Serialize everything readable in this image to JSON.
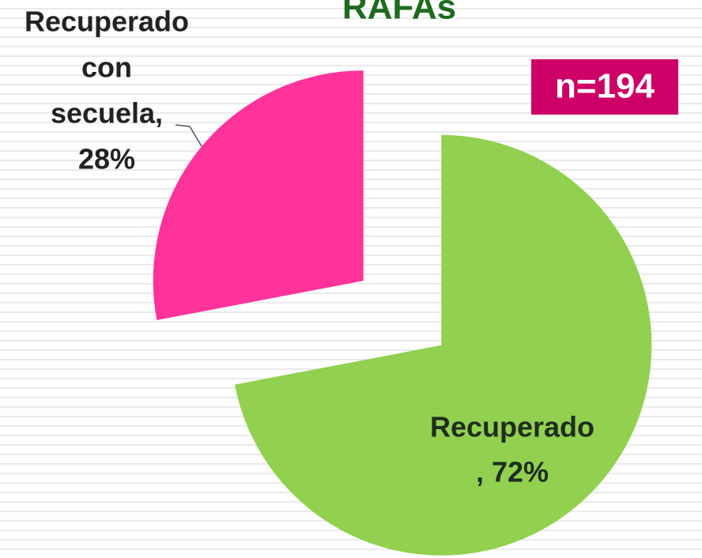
{
  "chart_data": {
    "type": "pie",
    "title": "RAFAs",
    "annotation": "n=194",
    "values": [
      72,
      28
    ],
    "value_labels": [
      [
        "Recuperado",
        ", 72%"
      ],
      [
        "Recuperado",
        "con",
        "secuela,",
        "28%"
      ]
    ],
    "colors": [
      "#92d050",
      "#ff3399"
    ]
  }
}
